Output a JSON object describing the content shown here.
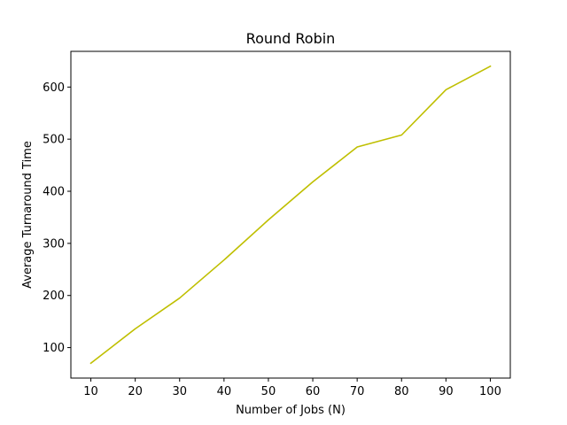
{
  "chart_data": {
    "type": "line",
    "title": "Round Robin",
    "xlabel": "Number of Jobs (N)",
    "ylabel": "Average Turnaround Time",
    "x": [
      10,
      20,
      30,
      40,
      50,
      60,
      70,
      80,
      90,
      100
    ],
    "series": [
      {
        "values": [
          70,
          136,
          195,
          268,
          345,
          418,
          485,
          508,
          595,
          640
        ],
        "color": "#bfbf00"
      }
    ],
    "xlim": [
      5.5,
      104.5
    ],
    "ylim": [
      41.5,
      668.5
    ],
    "xticks": [
      10,
      20,
      30,
      40,
      50,
      60,
      70,
      80,
      90,
      100
    ],
    "yticks": [
      100,
      200,
      300,
      400,
      500,
      600
    ],
    "grid": false
  }
}
